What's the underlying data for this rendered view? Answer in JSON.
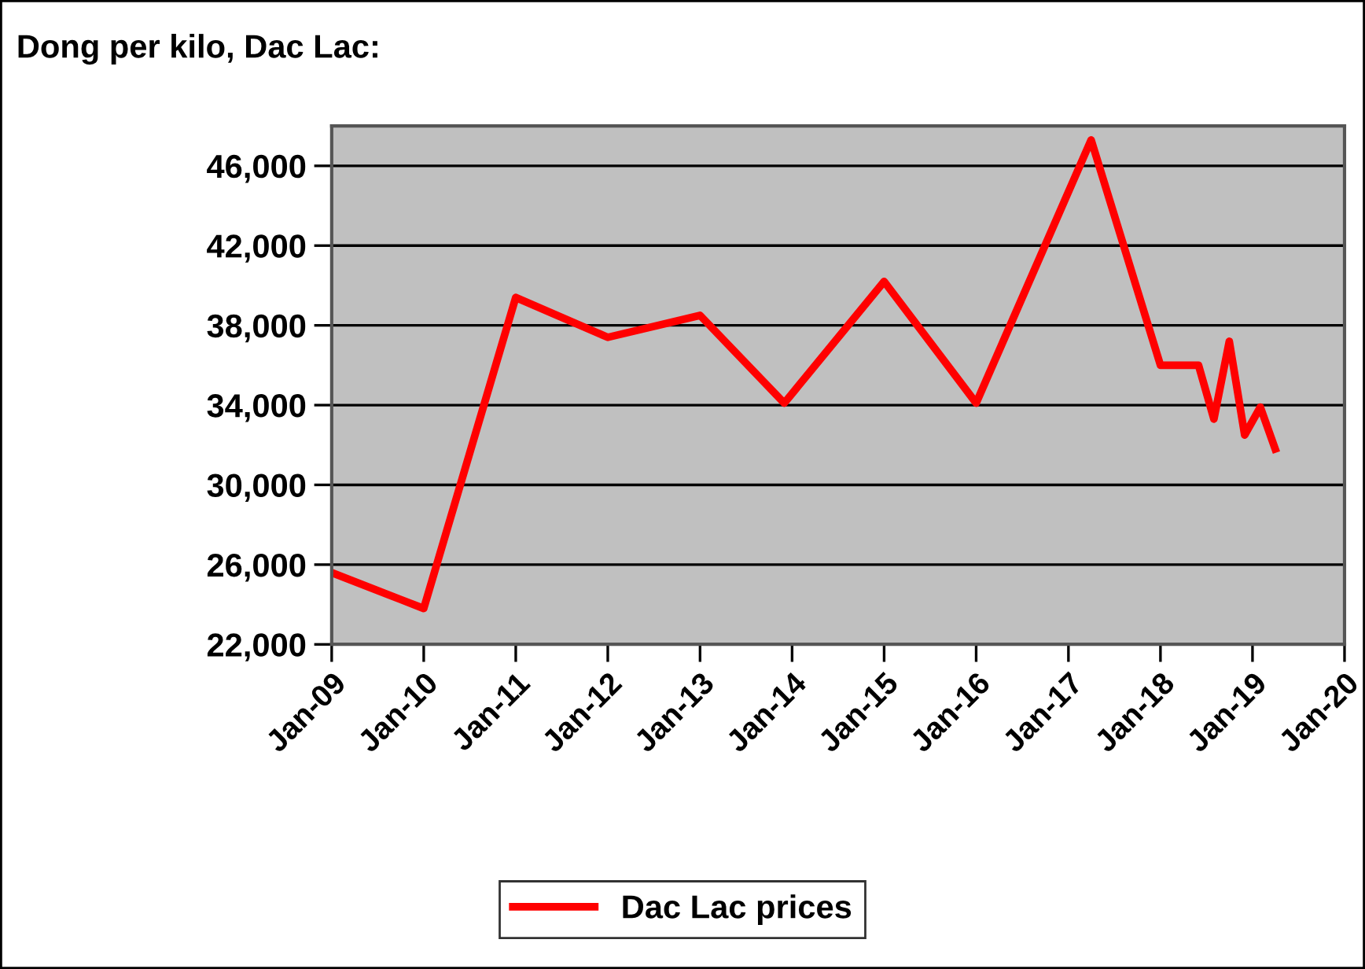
{
  "chart_data": {
    "type": "line",
    "title": "Dong per kilo, Dac Lac:",
    "x": [
      "2009-01",
      "2010-01",
      "2011-01",
      "2012-01",
      "2013-01",
      "2013-12",
      "2015-01",
      "2016-01",
      "2017-04",
      "2018-01",
      "2018-06",
      "2018-08",
      "2018-10",
      "2018-12",
      "2019-02",
      "2019-04"
    ],
    "series": [
      {
        "name": "Dac Lac prices",
        "color": "#ff0000",
        "values": [
          25600,
          23800,
          39400,
          37400,
          38500,
          34100,
          40200,
          34100,
          47300,
          36000,
          36000,
          33300,
          37200,
          32500,
          33900,
          31800
        ]
      }
    ],
    "xlim": [
      "2009-01",
      "2020-01"
    ],
    "xticks": [
      {
        "value": "2009-01",
        "label": "Jan-09"
      },
      {
        "value": "2010-01",
        "label": "Jan-10"
      },
      {
        "value": "2011-01",
        "label": "Jan-11"
      },
      {
        "value": "2012-01",
        "label": "Jan-12"
      },
      {
        "value": "2013-01",
        "label": "Jan-13"
      },
      {
        "value": "2014-01",
        "label": "Jan-14"
      },
      {
        "value": "2015-01",
        "label": "Jan-15"
      },
      {
        "value": "2016-01",
        "label": "Jan-16"
      },
      {
        "value": "2017-01",
        "label": "Jan-17"
      },
      {
        "value": "2018-01",
        "label": "Jan-18"
      },
      {
        "value": "2019-01",
        "label": "Jan-19"
      },
      {
        "value": "2020-01",
        "label": "Jan-20"
      }
    ],
    "ylim": [
      22000,
      48000
    ],
    "yticks": [
      {
        "value": 22000,
        "label": "22,000"
      },
      {
        "value": 26000,
        "label": "26,000"
      },
      {
        "value": 30000,
        "label": "30,000"
      },
      {
        "value": 34000,
        "label": "34,000"
      },
      {
        "value": 38000,
        "label": "38,000"
      },
      {
        "value": 42000,
        "label": "42,000"
      },
      {
        "value": 46000,
        "label": "46,000"
      }
    ],
    "grid": "y",
    "legend": "bottom",
    "marker": "none",
    "line_style": "solid"
  }
}
